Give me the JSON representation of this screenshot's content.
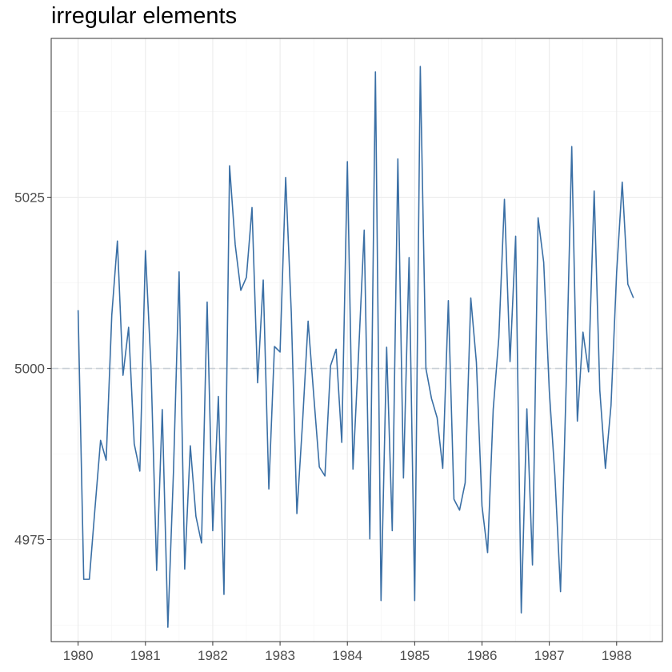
{
  "chart_data": {
    "type": "line",
    "title": "irregular elements",
    "xlabel": "",
    "ylabel": "",
    "x_tick_labels": [
      "1980",
      "1981",
      "1982",
      "1983",
      "1984",
      "1985",
      "1986",
      "1987",
      "1988"
    ],
    "x_ticks": [
      1980,
      1981,
      1982,
      1983,
      1984,
      1985,
      1986,
      1987,
      1988
    ],
    "y_tick_labels": [
      "4975",
      "5000",
      "5025"
    ],
    "y_ticks": [
      4975,
      5000,
      5025
    ],
    "xlim": [
      1979.6,
      1988.68
    ],
    "ylim": [
      4960.1,
      5048.2
    ],
    "grid": true,
    "reference_line": {
      "y": 5000,
      "style": "dashed",
      "color": "#c8cfd6"
    },
    "line_color": "#3a6fa5",
    "x_start": 1980.0,
    "x_step": 0.083333,
    "values": [
      5008.5,
      4969.2,
      4969.2,
      4979.5,
      4989.5,
      4986.6,
      5007.8,
      5018.6,
      4999.0,
      5006.0,
      4989.0,
      4985.0,
      5017.2,
      5000.0,
      4970.5,
      4994.0,
      4962.2,
      4985.0,
      5014.1,
      4970.7,
      4988.7,
      4978.4,
      4974.5,
      5009.7,
      4976.3,
      4995.9,
      4967.0,
      5029.6,
      5018.1,
      5011.4,
      5013.3,
      5023.5,
      4997.9,
      5012.9,
      4982.4,
      5003.2,
      5002.4,
      5027.9,
      5008.2,
      4978.8,
      4992.0,
      5006.9,
      4996.1,
      4985.6,
      4984.3,
      5000.4,
      5002.8,
      4989.2,
      5030.2,
      4985.3,
      5002.2,
      5020.2,
      4975.1,
      5043.3,
      4966.1,
      5003.1,
      4976.3,
      5030.6,
      4984.0,
      5016.2,
      4966.1,
      5044.1,
      5000.0,
      4995.6,
      4992.8,
      4985.4,
      5009.9,
      4980.9,
      4979.3,
      4983.3,
      5010.3,
      5000.9,
      4979.9,
      4973.1,
      4994.0,
      5004.5,
      5024.7,
      5001.0,
      5019.3,
      4964.3,
      4994.1,
      4971.3,
      5022.0,
      5015.5,
      4996.7,
      4984.3,
      4967.4,
      4997.5,
      5032.4,
      4992.3,
      5005.3,
      4999.5,
      5025.9,
      4996.8,
      4985.4,
      4994.6,
      5014.0,
      5027.2,
      5012.3,
      5010.3
    ]
  }
}
